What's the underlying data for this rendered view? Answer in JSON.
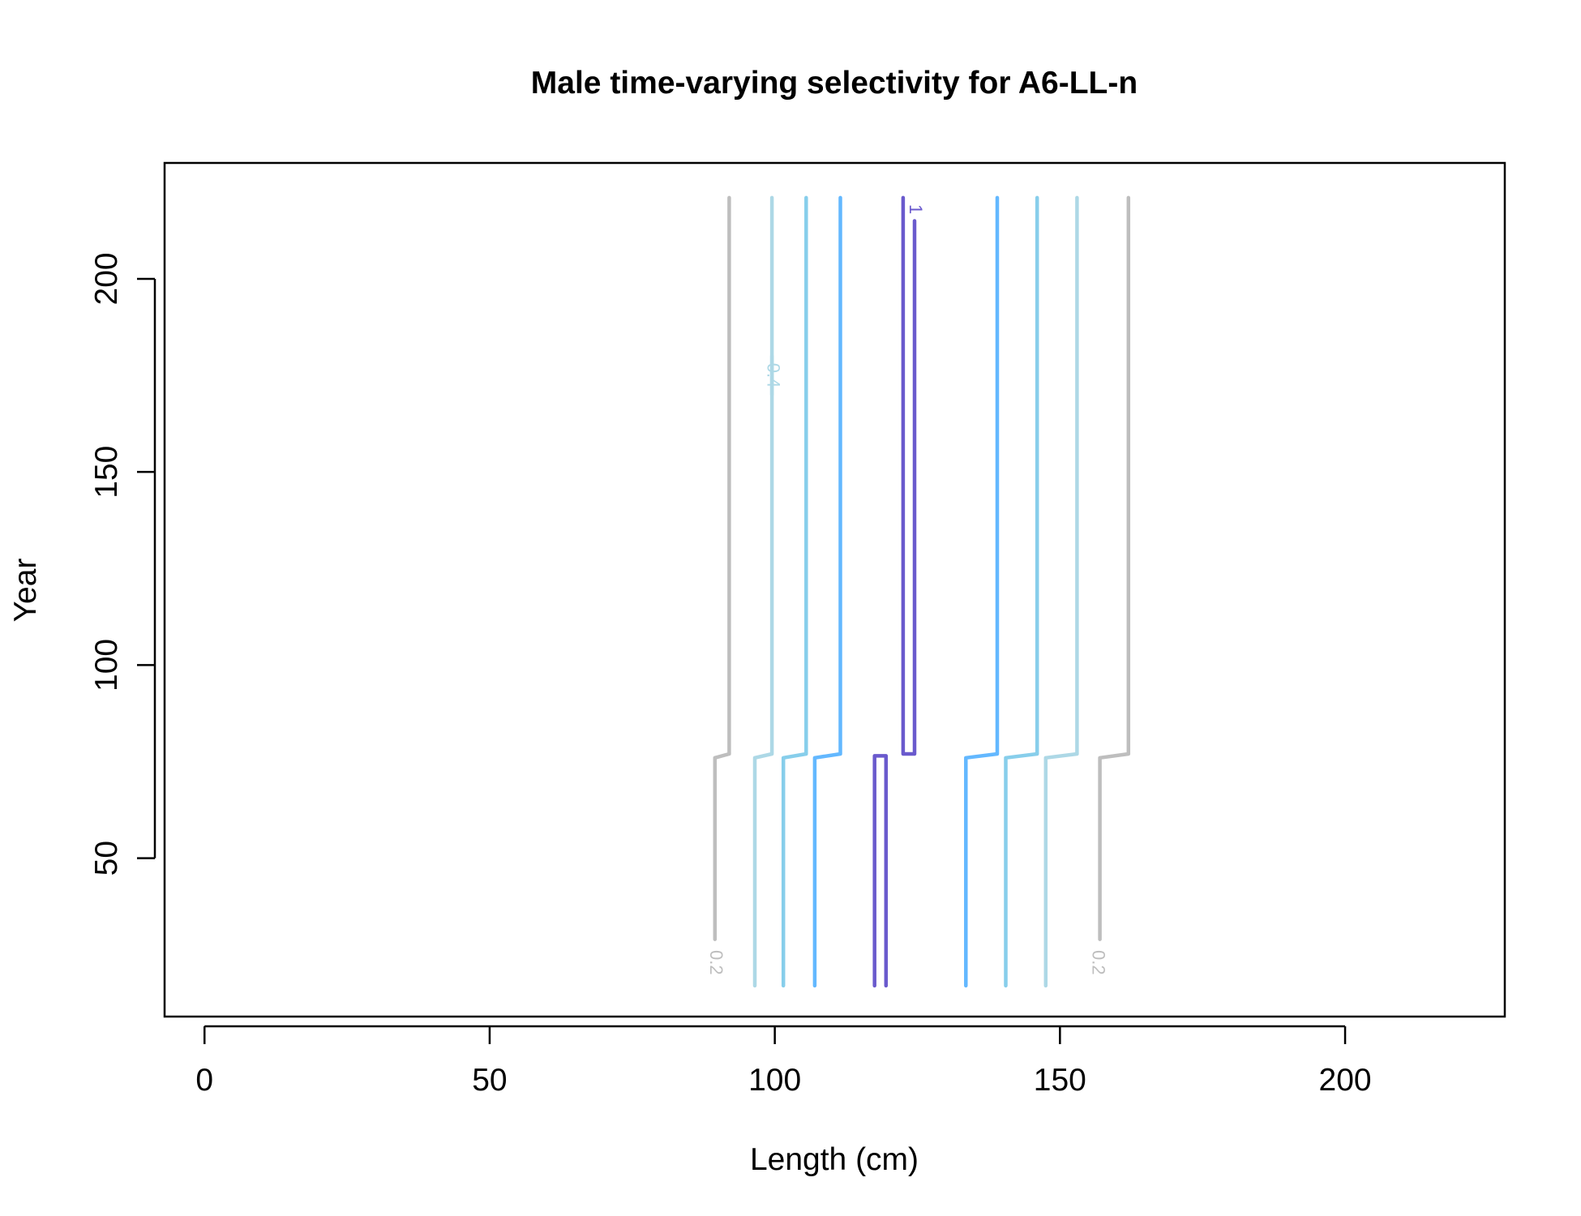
{
  "chart_data": {
    "type": "contour",
    "title": "Male time-varying selectivity for A6-LL-n",
    "xlabel": "Length (cm)",
    "ylabel": "Year",
    "xlim": [
      -7,
      228
    ],
    "ylim": [
      9,
      230
    ],
    "x_ticks": [
      0,
      50,
      100,
      150,
      200
    ],
    "y_ticks": [
      50,
      100,
      150,
      200
    ],
    "grid": false,
    "legend": "none",
    "colors": {
      "0.2": "#bebebe",
      "0.4": "#add8e6",
      "0.6": "#87ceeb",
      "0.8": "#63b8ff",
      "1": "#6a5acd"
    },
    "contours": [
      {
        "level": "0.2",
        "label": "0.2",
        "label_x": 89.5,
        "label_y": 23,
        "segments": [
          [
            [
              89.5,
              29
            ],
            [
              89.5,
              76
            ],
            [
              92,
              77
            ],
            [
              92,
              221
            ]
          ]
        ]
      },
      {
        "level": "0.2",
        "label": "0.2",
        "label_x": 156.5,
        "label_y": 23,
        "segments": [
          [
            [
              157,
              29
            ],
            [
              157,
              76
            ],
            [
              162,
              77
            ],
            [
              162,
              221
            ]
          ]
        ]
      },
      {
        "level": "0.4",
        "label": "0.4",
        "label_x": 99.5,
        "label_y": 175,
        "segments": [
          [
            [
              96.5,
              17
            ],
            [
              96.5,
              76
            ],
            [
              99.5,
              77
            ],
            [
              99.5,
              180
            ]
          ],
          [
            [
              99.5,
              170
            ],
            [
              99.5,
              221
            ]
          ]
        ]
      },
      {
        "level": "0.4",
        "label": "",
        "segments": [
          [
            [
              147.5,
              17
            ],
            [
              147.5,
              76
            ],
            [
              153,
              77
            ],
            [
              153,
              221
            ]
          ]
        ]
      },
      {
        "level": "0.6",
        "label": "",
        "segments": [
          [
            [
              101.5,
              17
            ],
            [
              101.5,
              76
            ],
            [
              105.5,
              77
            ],
            [
              105.5,
              221
            ]
          ]
        ]
      },
      {
        "level": "0.6",
        "label": "",
        "segments": [
          [
            [
              140.5,
              17
            ],
            [
              140.5,
              76
            ],
            [
              146,
              77
            ],
            [
              146,
              221
            ]
          ]
        ]
      },
      {
        "level": "0.8",
        "label": "",
        "segments": [
          [
            [
              107,
              17
            ],
            [
              107,
              76
            ],
            [
              111.5,
              77
            ],
            [
              111.5,
              221
            ]
          ]
        ]
      },
      {
        "level": "0.8",
        "label": "",
        "segments": [
          [
            [
              133.5,
              17
            ],
            [
              133.5,
              76
            ],
            [
              139,
              77
            ],
            [
              139,
              221
            ]
          ]
        ]
      },
      {
        "level": "1",
        "label": "",
        "segments": [
          [
            [
              117.5,
              17
            ],
            [
              117.5,
              76.5
            ],
            [
              119.5,
              76.5
            ],
            [
              119.5,
              17
            ]
          ]
        ]
      },
      {
        "level": "1",
        "label": "1",
        "label_x": 124.5,
        "label_y": 218,
        "segments": [
          [
            [
              122.5,
              221
            ],
            [
              122.5,
              77
            ],
            [
              124.5,
              77
            ],
            [
              124.5,
              215
            ]
          ]
        ]
      }
    ]
  }
}
